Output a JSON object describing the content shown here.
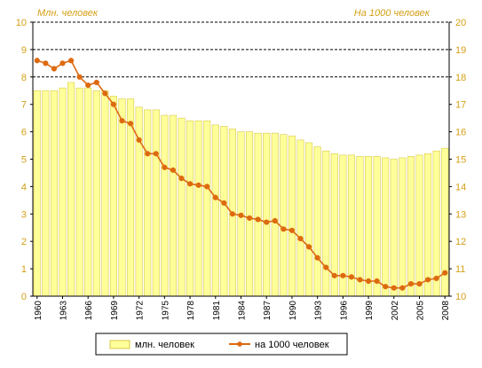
{
  "chart_data": {
    "type": "bar+line",
    "y_left_title": "Млн. человек",
    "y_right_title": "На 1000 человек",
    "y_left_ticks": [
      "0",
      "1",
      "2",
      "3",
      "4",
      "5",
      "6",
      "7",
      "8",
      "9",
      "10"
    ],
    "y_right_ticks": [
      "10",
      "11",
      "12",
      "13",
      "14",
      "15",
      "16",
      "17",
      "18",
      "19",
      "20"
    ],
    "ylim_left": [
      0,
      10
    ],
    "ylim_right": [
      10,
      20
    ],
    "x_tick_labels": [
      "1960",
      "1963",
      "1966",
      "1969",
      "1972",
      "1975",
      "1978",
      "1981",
      "1984",
      "1987",
      "1990",
      "1993",
      "1996",
      "1999",
      "2002",
      "2005",
      "2008"
    ],
    "x": [
      1960,
      1961,
      1962,
      1963,
      1964,
      1965,
      1966,
      1967,
      1968,
      1969,
      1970,
      1971,
      1972,
      1973,
      1974,
      1975,
      1976,
      1977,
      1978,
      1979,
      1980,
      1981,
      1982,
      1983,
      1984,
      1985,
      1986,
      1987,
      1988,
      1989,
      1990,
      1991,
      1992,
      1993,
      1994,
      1995,
      1996,
      1997,
      1998,
      1999,
      2000,
      2001,
      2002,
      2003,
      2004,
      2005,
      2006,
      2007,
      2008
    ],
    "series": [
      {
        "name": "млн. человек",
        "kind": "bar",
        "axis": "left",
        "color": "#ffff99",
        "border": "#d8c84a",
        "values": [
          7.5,
          7.5,
          7.5,
          7.6,
          7.8,
          7.6,
          7.6,
          7.5,
          7.5,
          7.3,
          7.2,
          7.2,
          6.9,
          6.8,
          6.8,
          6.6,
          6.6,
          6.5,
          6.4,
          6.4,
          6.4,
          6.25,
          6.2,
          6.1,
          6.0,
          6.0,
          5.95,
          5.95,
          5.95,
          5.9,
          5.85,
          5.7,
          5.6,
          5.45,
          5.3,
          5.2,
          5.15,
          5.15,
          5.1,
          5.1,
          5.1,
          5.05,
          5.0,
          5.05,
          5.1,
          5.15,
          5.2,
          5.3,
          5.4
        ]
      },
      {
        "name": "на 1000 человек",
        "kind": "line",
        "axis": "right",
        "color": "#dd6a10",
        "values": [
          18.6,
          18.5,
          18.3,
          18.5,
          18.6,
          18.0,
          17.7,
          17.8,
          17.4,
          17.0,
          16.4,
          16.3,
          15.7,
          15.2,
          15.2,
          14.7,
          14.6,
          14.3,
          14.1,
          14.05,
          14.0,
          13.6,
          13.4,
          13.0,
          12.95,
          12.85,
          12.8,
          12.7,
          12.75,
          12.45,
          12.4,
          12.1,
          11.8,
          11.4,
          11.05,
          10.75,
          10.75,
          10.7,
          10.6,
          10.55,
          10.55,
          10.35,
          10.3,
          10.3,
          10.45,
          10.45,
          10.6,
          10.65,
          10.85
        ]
      }
    ],
    "grid": "horizontal dashed at 8, 9, 10",
    "legend": "bottom-center"
  },
  "colors": {
    "plot_bg": "#ffffff",
    "axis_label_color": "#d4a017",
    "legend_border": "#000000"
  }
}
